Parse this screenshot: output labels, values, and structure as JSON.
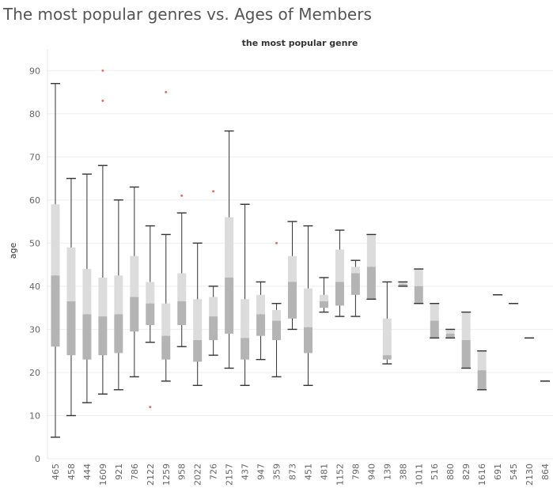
{
  "title": "The most popular genres vs.  Ages of Members",
  "chart_data": {
    "type": "boxplot",
    "column_header": "the most popular genre",
    "xlabel": "",
    "ylabel": "age",
    "ylim": [
      0,
      95
    ],
    "yticks": [
      0,
      10,
      20,
      30,
      40,
      50,
      60,
      70,
      80,
      90
    ],
    "grid": true,
    "colors": {
      "upper_box": "#dcdcdc",
      "lower_box": "#b4b4b4",
      "whisker": "#333333",
      "point": "#e07070"
    },
    "categories": [
      {
        "label": "465",
        "min": 5,
        "q1": 26,
        "median": 42.5,
        "q3": 59,
        "max": 87,
        "outliers": []
      },
      {
        "label": "458",
        "min": 10,
        "q1": 24,
        "median": 36.5,
        "q3": 49,
        "max": 65,
        "outliers": []
      },
      {
        "label": "444",
        "min": 13,
        "q1": 23,
        "median": 33.5,
        "q3": 44,
        "max": 66,
        "outliers": []
      },
      {
        "label": "1609",
        "min": 15,
        "q1": 24,
        "median": 33,
        "q3": 42,
        "max": 68,
        "outliers": [
          83,
          90
        ]
      },
      {
        "label": "921",
        "min": 16,
        "q1": 24.5,
        "median": 33.5,
        "q3": 42.5,
        "max": 60,
        "outliers": []
      },
      {
        "label": "786",
        "min": 19,
        "q1": 29.5,
        "median": 37.5,
        "q3": 47,
        "max": 63,
        "outliers": []
      },
      {
        "label": "2122",
        "min": 27,
        "q1": 31,
        "median": 36,
        "q3": 41,
        "max": 54,
        "outliers": [
          12
        ]
      },
      {
        "label": "1259",
        "min": 18,
        "q1": 23,
        "median": 28.5,
        "q3": 36,
        "max": 52,
        "outliers": [
          85
        ]
      },
      {
        "label": "958",
        "min": 26,
        "q1": 31,
        "median": 36.5,
        "q3": 43,
        "max": 57,
        "outliers": [
          61
        ]
      },
      {
        "label": "2022",
        "min": 17,
        "q1": 22.5,
        "median": 27.5,
        "q3": 37,
        "max": 50,
        "outliers": []
      },
      {
        "label": "726",
        "min": 24,
        "q1": 27.5,
        "median": 33,
        "q3": 37.5,
        "max": 40,
        "outliers": [
          62
        ]
      },
      {
        "label": "2157",
        "min": 21,
        "q1": 29,
        "median": 42,
        "q3": 56,
        "max": 76,
        "outliers": []
      },
      {
        "label": "437",
        "min": 17,
        "q1": 23,
        "median": 28,
        "q3": 37,
        "max": 59,
        "outliers": []
      },
      {
        "label": "947",
        "min": 23,
        "q1": 28.5,
        "median": 33.5,
        "q3": 38,
        "max": 41,
        "outliers": []
      },
      {
        "label": "359",
        "min": 19,
        "q1": 27.5,
        "median": 32,
        "q3": 34.5,
        "max": 36,
        "outliers": [
          50
        ]
      },
      {
        "label": "873",
        "min": 30,
        "q1": 32.5,
        "median": 41,
        "q3": 47,
        "max": 55,
        "outliers": []
      },
      {
        "label": "451",
        "min": 17,
        "q1": 24.5,
        "median": 30.5,
        "q3": 39.5,
        "max": 54,
        "outliers": []
      },
      {
        "label": "481",
        "min": 34,
        "q1": 35,
        "median": 36.5,
        "q3": 38,
        "max": 42,
        "outliers": []
      },
      {
        "label": "1152",
        "min": 33,
        "q1": 35.5,
        "median": 41,
        "q3": 48.5,
        "max": 53,
        "outliers": []
      },
      {
        "label": "798",
        "min": 33,
        "q1": 38,
        "median": 43,
        "q3": 44.5,
        "max": 46,
        "outliers": []
      },
      {
        "label": "940",
        "min": 37,
        "q1": 37,
        "median": 44.5,
        "q3": 52,
        "max": 52,
        "outliers": []
      },
      {
        "label": "139",
        "min": 22,
        "q1": 23,
        "median": 24,
        "q3": 32.5,
        "max": 41,
        "outliers": []
      },
      {
        "label": "388",
        "min": 40,
        "q1": 40,
        "median": 40.5,
        "q3": 41,
        "max": 41,
        "outliers": []
      },
      {
        "label": "1011",
        "min": 36,
        "q1": 36,
        "median": 40,
        "q3": 44,
        "max": 44,
        "outliers": []
      },
      {
        "label": "516",
        "min": 28,
        "q1": 28,
        "median": 32,
        "q3": 36,
        "max": 36,
        "outliers": []
      },
      {
        "label": "880",
        "min": 28,
        "q1": 28,
        "median": 29,
        "q3": 30,
        "max": 30,
        "outliers": []
      },
      {
        "label": "829",
        "min": 21,
        "q1": 21,
        "median": 27.5,
        "q3": 34,
        "max": 34,
        "outliers": []
      },
      {
        "label": "1616",
        "min": 16,
        "q1": 16,
        "median": 20.5,
        "q3": 25,
        "max": 25,
        "outliers": []
      },
      {
        "label": "691",
        "min": 38,
        "q1": 38,
        "median": 38,
        "q3": 38,
        "max": 38,
        "outliers": []
      },
      {
        "label": "545",
        "min": 36,
        "q1": 36,
        "median": 36,
        "q3": 36,
        "max": 36,
        "outliers": []
      },
      {
        "label": "2130",
        "min": 28,
        "q1": 28,
        "median": 28,
        "q3": 28,
        "max": 28,
        "outliers": []
      },
      {
        "label": "864",
        "min": 18,
        "q1": 18,
        "median": 18,
        "q3": 18,
        "max": 18,
        "outliers": []
      }
    ]
  }
}
